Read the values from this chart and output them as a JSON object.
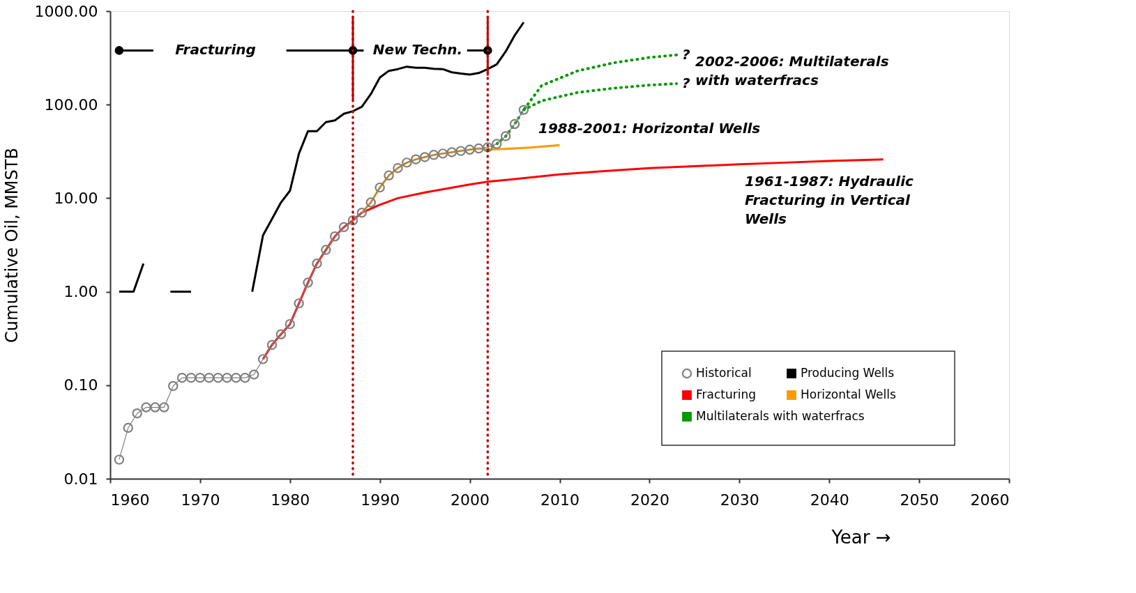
{
  "chart_data": {
    "type": "line",
    "xlabel": "Year →",
    "ylabel": "Cumulative Oil, MMSTB",
    "xlim": [
      1960,
      2060
    ],
    "xticks": [
      1960,
      1970,
      1980,
      1990,
      2000,
      2010,
      2020,
      2030,
      2040,
      2050,
      2060
    ],
    "ylim": [
      0.01,
      1000
    ],
    "log": "y",
    "yticks": [
      {
        "value": 0.01,
        "label": "0.01"
      },
      {
        "value": 0.1,
        "label": "0.10"
      },
      {
        "value": 1,
        "label": "1.00"
      },
      {
        "value": 10,
        "label": "10.00"
      },
      {
        "value": 100,
        "label": "100.00"
      },
      {
        "value": 1000,
        "label": "1000.00"
      }
    ],
    "grid": false,
    "legend": "bottom right",
    "series": [
      {
        "name": "Historical",
        "color": "#808080",
        "line_style": "solid",
        "marker": "circle",
        "x": [
          1961,
          1962,
          1963,
          1964,
          1965,
          1966,
          1967,
          1968,
          1969,
          1970,
          1971,
          1972,
          1973,
          1974,
          1975,
          1976,
          1977,
          1978,
          1979,
          1980,
          1981,
          1982,
          1983,
          1984,
          1985,
          1986,
          1987,
          1988,
          1989,
          1990,
          1991,
          1992,
          1993,
          1994,
          1995,
          1996,
          1997,
          1998,
          1999,
          2000,
          2001,
          2002,
          2003,
          2004,
          2005,
          2006
        ],
        "values": [
          0.016,
          0.035,
          0.05,
          0.058,
          0.058,
          0.058,
          0.098,
          0.12,
          0.12,
          0.12,
          0.12,
          0.12,
          0.12,
          0.12,
          0.12,
          0.13,
          0.19,
          0.27,
          0.35,
          0.45,
          0.75,
          1.25,
          2.0,
          2.8,
          3.9,
          4.9,
          5.8,
          7.0,
          9.0,
          13,
          17.5,
          21,
          24,
          26,
          27.5,
          29,
          30,
          31,
          32,
          33,
          34,
          35,
          38,
          46,
          62,
          88
        ]
      },
      {
        "name": "Producing Wells",
        "color": "#000000",
        "line_style": "solid",
        "x": [
          1961,
          1962.6,
          1963.7,
          null,
          1966.7,
          1969,
          null,
          1975.8,
          1977,
          1978,
          1979,
          1980,
          1981,
          1982,
          1983,
          1984,
          1985,
          1986,
          1987,
          1988,
          1989,
          1990,
          1991,
          1992,
          1993,
          1994,
          1995,
          1996,
          1997,
          1998,
          1999,
          2000,
          2001,
          2002,
          2003,
          2004,
          2005,
          2006
        ],
        "values": [
          1,
          1,
          2,
          null,
          1,
          1,
          null,
          1,
          4,
          6,
          9,
          12,
          30,
          52,
          52,
          65,
          68,
          80,
          85,
          95,
          130,
          195,
          230,
          240,
          255,
          248,
          248,
          242,
          240,
          222,
          215,
          210,
          218,
          240,
          270,
          370,
          550,
          760
        ]
      },
      {
        "name": "Fracturing",
        "color": "#ff0000",
        "line_style": "solid",
        "x": [
          1977,
          1978,
          1979,
          1980,
          1981,
          1982,
          1983,
          1984,
          1985,
          1986,
          1987,
          1988,
          1990,
          1992,
          1995,
          2000,
          2002,
          2005,
          2010,
          2015,
          2020,
          2025,
          2030,
          2035,
          2040,
          2046
        ],
        "values": [
          0.19,
          0.27,
          0.35,
          0.45,
          0.75,
          1.25,
          2.0,
          2.8,
          3.9,
          4.9,
          5.8,
          7.0,
          8.5,
          10,
          11.5,
          14,
          15,
          16,
          18,
          19.5,
          21,
          22,
          23,
          24,
          25,
          26
        ]
      },
      {
        "name": "Horizontal Wells",
        "color": "#ff9900",
        "line_style": "solid",
        "x": [
          1988,
          1989,
          1990,
          1991,
          1992,
          1993,
          1994,
          1995,
          1996,
          1997,
          1998,
          1999,
          2000,
          2001,
          2002,
          2005,
          2007,
          2010
        ],
        "values": [
          7.0,
          9.0,
          13,
          17.5,
          21,
          24,
          26,
          27.5,
          29,
          30,
          31,
          32,
          33,
          34,
          33,
          34,
          35,
          37
        ]
      },
      {
        "name": "Multilaterals with waterfracs",
        "color": "#009900",
        "line_style": "dotted",
        "x": [
          2002,
          2003,
          2004,
          2005,
          2006,
          2008,
          2012,
          2016,
          2020,
          2023
        ],
        "values": [
          33,
          38,
          46,
          62,
          88,
          160,
          230,
          280,
          320,
          340
        ]
      },
      {
        "color": "#009900",
        "line_style": "dotted",
        "x": [
          2006,
          2008,
          2012,
          2016,
          2020,
          2023
        ],
        "values": [
          88,
          110,
          135,
          150,
          162,
          168
        ]
      },
      {
        "color": "#c00000",
        "line_style": "solid",
        "x": [
          1987,
          1987,
          null,
          2002,
          2002
        ],
        "values": [
          870,
          113,
          null,
          870,
          204
        ]
      },
      {
        "color": "#000000",
        "line_style": "solid",
        "x": [
          1961,
          1964.8,
          null,
          1979.6,
          1988.2,
          null,
          1999.7,
          2002
        ],
        "values": [
          380,
          380,
          null,
          380,
          380,
          null,
          380,
          380
        ]
      },
      {
        "type": "scatter",
        "color": "#000000",
        "marker": "circle",
        "x": [
          1961,
          1987,
          2002
        ],
        "values": [
          380,
          380,
          380
        ]
      }
    ],
    "ref_lines": [
      {
        "axis": "x",
        "value": 1987,
        "color": "#c00000",
        "line_style": "dotted"
      },
      {
        "axis": "x",
        "value": 2002,
        "color": "#c00000",
        "line_style": "dotted"
      }
    ],
    "annotations": [
      "Fracturing",
      "New Techn.",
      {
        "text": "?",
        "x": 2023,
        "y": 340
      },
      {
        "text": "?",
        "x": 2023,
        "y": 168
      },
      "2002-2006: Multilaterals\nwith waterfracs",
      "1988-2001: Horizontal Wells",
      "1961-1987: Hydraulic\nFracturing in Vertical\nWells"
    ]
  }
}
